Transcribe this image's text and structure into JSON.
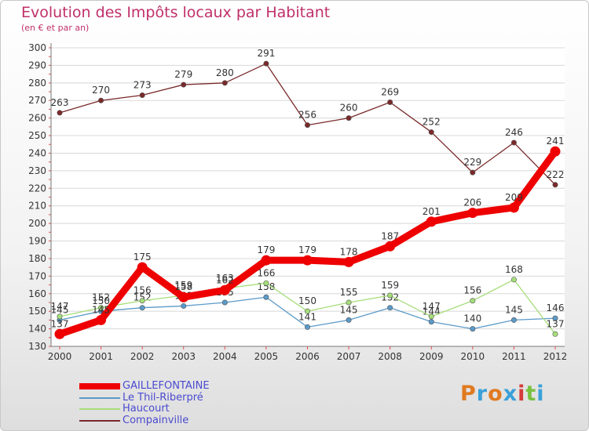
{
  "title": "Evolution des Impôts locaux par Habitant",
  "subtitle": "(en € et par an)",
  "logo": {
    "text": "Proxiti",
    "colors": [
      "#e07a20",
      "#3aa0d8",
      "#e07a20",
      "#3aa0d8",
      "#d63a3a",
      "#7ac040",
      "#3aa0d8"
    ]
  },
  "chart_data": {
    "type": "line",
    "categories": [
      "2000",
      "2001",
      "2002",
      "2003",
      "2004",
      "2005",
      "2006",
      "2007",
      "2008",
      "2009",
      "2010",
      "2011",
      "2012"
    ],
    "ylim": [
      130,
      300
    ],
    "yticks": [
      130,
      140,
      150,
      160,
      170,
      180,
      190,
      200,
      210,
      220,
      230,
      240,
      250,
      260,
      270,
      280,
      290,
      300
    ],
    "series": [
      {
        "name": "Compainville",
        "color": "#7a2a2a",
        "values": [
          263,
          270,
          273,
          279,
          280,
          291,
          256,
          260,
          269,
          252,
          229,
          246,
          222
        ],
        "labels": [
          "263",
          "270",
          "273",
          "279",
          "280",
          "291",
          "256",
          "260",
          "269",
          "252",
          "229",
          "246",
          "222"
        ]
      },
      {
        "name": "Le Thil-Riberpré",
        "color": "#5b9ac8",
        "values": [
          145,
          150,
          152,
          153,
          155,
          158,
          141,
          145,
          152,
          144,
          140,
          145,
          146
        ],
        "labels": [
          "145",
          "150",
          "152",
          "153",
          "155",
          "158",
          "141",
          "145",
          "152",
          "144",
          "140",
          "145",
          "146"
        ]
      },
      {
        "name": "Haucourt",
        "color": "#a6de7a",
        "values": [
          147,
          152,
          156,
          159,
          163,
          166,
          150,
          155,
          159,
          147,
          156,
          168,
          137
        ],
        "labels": [
          "147",
          "152",
          "156",
          "159",
          "163",
          "166",
          "150",
          "155",
          "159",
          "147",
          "156",
          "168",
          "137"
        ]
      },
      {
        "name": "GAILLEFONTAINE",
        "color": "#ee0000",
        "values": [
          137,
          145,
          175,
          158,
          162,
          179,
          179,
          178,
          187,
          201,
          206,
          209,
          241
        ],
        "labels": [
          "137",
          "145",
          "175",
          "158",
          "162",
          "179",
          "179",
          "178",
          "187",
          "201",
          "206",
          "209",
          "241"
        ]
      }
    ],
    "legend": [
      "GAILLEFONTAINE",
      "Le Thil-Riberpré",
      "Haucourt",
      "Compainville"
    ]
  }
}
